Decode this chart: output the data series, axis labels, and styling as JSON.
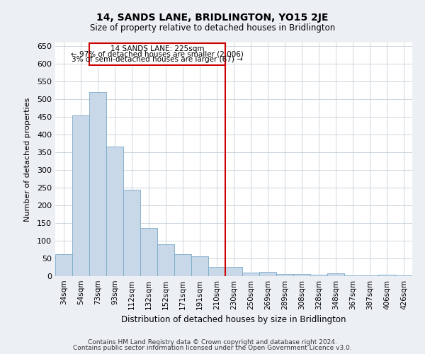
{
  "title": "14, SANDS LANE, BRIDLINGTON, YO15 2JE",
  "subtitle": "Size of property relative to detached houses in Bridlington",
  "xlabel": "Distribution of detached houses by size in Bridlington",
  "ylabel": "Number of detached properties",
  "categories": [
    "34sqm",
    "54sqm",
    "73sqm",
    "93sqm",
    "112sqm",
    "132sqm",
    "152sqm",
    "171sqm",
    "191sqm",
    "210sqm",
    "230sqm",
    "250sqm",
    "269sqm",
    "289sqm",
    "308sqm",
    "328sqm",
    "348sqm",
    "367sqm",
    "387sqm",
    "406sqm",
    "426sqm"
  ],
  "values": [
    62,
    455,
    521,
    366,
    245,
    137,
    91,
    62,
    56,
    27,
    27,
    11,
    12,
    6,
    7,
    4,
    9,
    3,
    2,
    5,
    3
  ],
  "bar_color": "#c8d8e8",
  "bar_edge_color": "#7aaac8",
  "marker_line_color": "#cc0000",
  "marker_label": "14 SANDS LANE: 225sqm",
  "annotation_line1": "← 97% of detached houses are smaller (2,006)",
  "annotation_line2": "3% of semi-detached houses are larger (67) →",
  "annotation_box_edgecolor": "#cc0000",
  "ylim": [
    0,
    660
  ],
  "yticks": [
    0,
    50,
    100,
    150,
    200,
    250,
    300,
    350,
    400,
    450,
    500,
    550,
    600,
    650
  ],
  "footnote1": "Contains HM Land Registry data © Crown copyright and database right 2024.",
  "footnote2": "Contains public sector information licensed under the Open Government Licence v3.0.",
  "fig_facecolor": "#ecf0f5",
  "plot_facecolor": "#ffffff",
  "grid_color": "#c5cfd8"
}
